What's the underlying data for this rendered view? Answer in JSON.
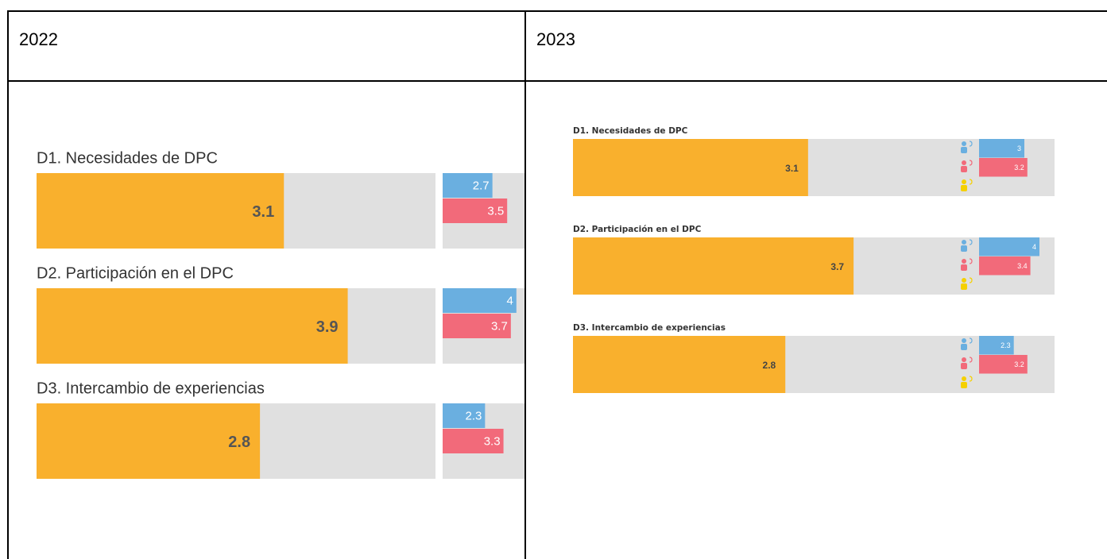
{
  "table": {
    "headers": [
      "2022",
      "2023"
    ]
  },
  "chart_data": [
    {
      "type": "bar",
      "categories": [
        "D1. Necesidades de DPC",
        "D2. Participación en el DPC",
        "D3. Intercambio de experiencias"
      ],
      "xlim": [
        0,
        5
      ],
      "x2lim": [
        0,
        5
      ],
      "series": [
        {
          "color": "#f9b02d",
          "values": [
            3.1,
            3.9,
            2.8
          ]
        },
        {
          "color": "#6aafe0",
          "axis": "x2",
          "values": [
            2.7,
            4,
            2.3
          ]
        },
        {
          "color": "#f26a7a",
          "axis": "x2",
          "values": [
            3.5,
            3.7,
            3.3
          ]
        }
      ]
    },
    {
      "type": "bar",
      "categories": [
        "D1. Necesidades de DPC",
        "D2. Participación en el DPC",
        "D3. Intercambio de experiencias"
      ],
      "xlim": [
        0,
        6.35
      ],
      "x2lim": [
        0,
        5
      ],
      "series": [
        {
          "color": "#f9b02d",
          "values": [
            3.1,
            3.7,
            2.8
          ]
        },
        {
          "color": "#6aafe0",
          "axis": "x2",
          "values": [
            3,
            4,
            2.3
          ]
        },
        {
          "color": "#f26a7a",
          "axis": "x2",
          "values": [
            3.2,
            3.4,
            3.2
          ]
        }
      ]
    }
  ]
}
